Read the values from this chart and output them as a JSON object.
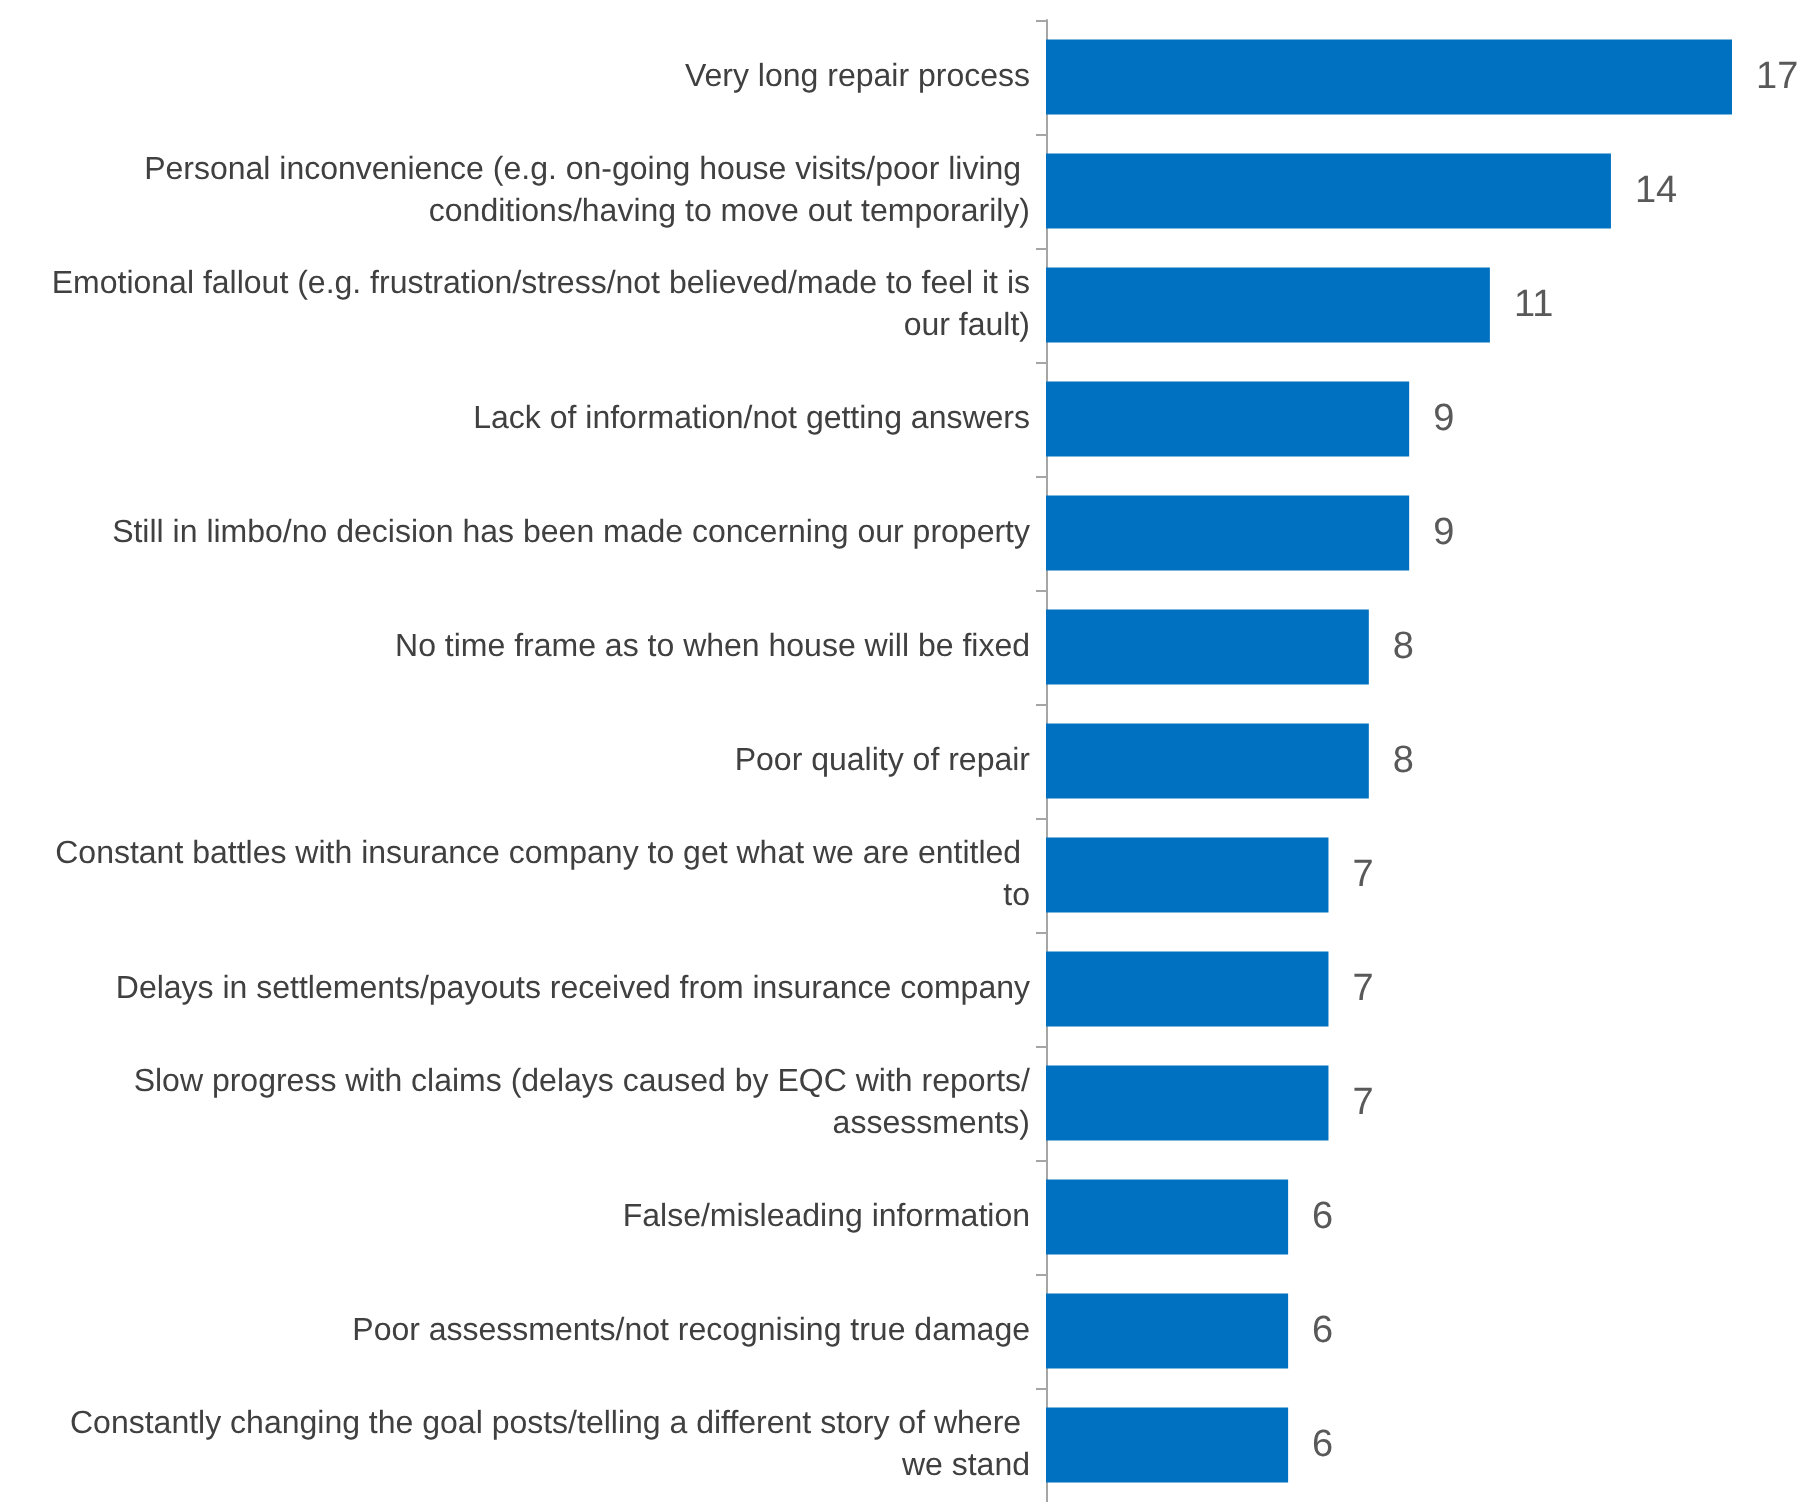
{
  "chart_data": {
    "type": "bar",
    "orientation": "horizontal",
    "data_labels": true,
    "categories": [
      "Very long repair process",
      "Personal inconvenience (e.g. on-going house visits/poor living conditions/having to move out temporarily)",
      "Emotional fallout (e.g. frustration/stress/not believed/made to feel it is our fault)",
      "Lack of information/not getting answers",
      "Still in limbo/no decision has been made concerning our property",
      "No time frame as to when house will be fixed",
      "Poor quality of repair",
      "Constant battles with insurance company to get what we are entitled to",
      "Delays in settlements/payouts received from insurance company",
      "Slow progress with claims (delays caused by EQC with reports/assessments)",
      "False/misleading information",
      "Poor assessments/not recognising true damage",
      "Constantly changing the goal posts/telling a different story of where we stand"
    ],
    "series": [
      {
        "color": "#0070c0",
        "values": [
          17,
          14,
          11,
          9,
          9,
          8,
          8,
          7,
          7,
          7,
          6,
          6,
          6
        ]
      }
    ]
  }
}
